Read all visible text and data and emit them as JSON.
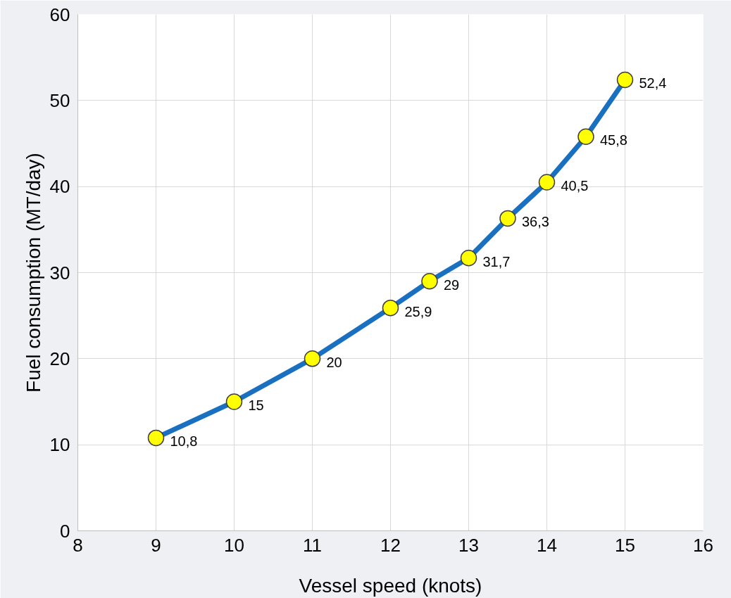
{
  "chart_data": {
    "type": "line",
    "xlabel": "Vessel speed (knots)",
    "ylabel": "Fuel consumption (MT/day)",
    "x": [
      9,
      10,
      11,
      12,
      12.5,
      13,
      13.5,
      14,
      14.5,
      15
    ],
    "series": [
      {
        "color": "#1a70c0",
        "colors": [
          "#ffff00",
          "#ffff00",
          "#ffff00",
          "#ffff00",
          "#ffff00",
          "#ffff00",
          "#ffff00",
          "#ffff00",
          "#ffff00",
          "#ffff00"
        ],
        "values": [
          10.8,
          15,
          20,
          25.9,
          29,
          31.7,
          36.3,
          40.5,
          45.8,
          52.4
        ],
        "value_labels": [
          "10,8",
          "15",
          "20",
          "25,9",
          "29",
          "31,7",
          "36,3",
          "40,5",
          "45,8",
          "52,4"
        ]
      }
    ],
    "xlim": [
      8,
      16
    ],
    "xticks": [
      8,
      9,
      10,
      11,
      12,
      13,
      14,
      15,
      16
    ],
    "ylim": [
      0,
      60
    ],
    "yticks": [
      0,
      10,
      20,
      30,
      40,
      50,
      60
    ],
    "grid": true,
    "marker": "circle",
    "line_style": "solid"
  }
}
